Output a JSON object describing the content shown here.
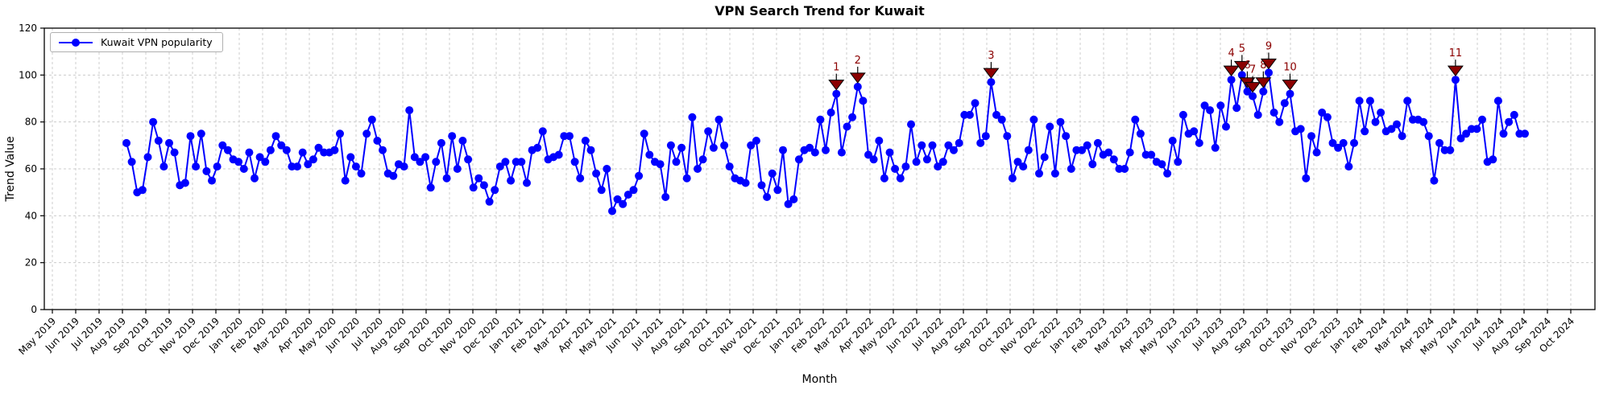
{
  "title": "VPN Search Trend for Kuwait",
  "xlabel": "Month",
  "ylabel": "Trend Value",
  "legend": {
    "label": "Kuwait VPN popularity"
  },
  "chart_data": {
    "type": "line",
    "title": "VPN Search Trend for Kuwait",
    "xlabel": "Month",
    "ylabel": "Trend Value",
    "ylim": [
      0,
      120
    ],
    "yticks": [
      0,
      20,
      40,
      60,
      80,
      100,
      120
    ],
    "grid": true,
    "grid_color": "#cccccc",
    "legend_position": "upper-left",
    "line_color": "#0000ff",
    "annotation_color": "#8b0000",
    "x_tick_labels": [
      "May 2019",
      "Jun 2019",
      "Jul 2019",
      "Aug 2019",
      "Sep 2019",
      "Oct 2019",
      "Nov 2019",
      "Dec 2019",
      "Jan 2020",
      "Feb 2020",
      "Mar 2020",
      "Apr 2020",
      "May 2020",
      "Jun 2020",
      "Jul 2020",
      "Aug 2020",
      "Sep 2020",
      "Oct 2020",
      "Nov 2020",
      "Dec 2020",
      "Jan 2021",
      "Feb 2021",
      "Mar 2021",
      "Apr 2021",
      "May 2021",
      "Jun 2021",
      "Jul 2021",
      "Aug 2021",
      "Sep 2021",
      "Oct 2021",
      "Nov 2021",
      "Dec 2021",
      "Jan 2022",
      "Feb 2022",
      "Mar 2022",
      "Apr 2022",
      "May 2022",
      "Jun 2022",
      "Jul 2022",
      "Aug 2022",
      "Sep 2022",
      "Oct 2022",
      "Nov 2022",
      "Dec 2022",
      "Jan 2023",
      "Feb 2023",
      "Mar 2023",
      "Apr 2023",
      "May 2023",
      "Jun 2023",
      "Jul 2023",
      "Aug 2023",
      "Sep 2023",
      "Oct 2023",
      "Nov 2023",
      "Dec 2023",
      "Jan 2024",
      "Feb 2024",
      "Mar 2024",
      "Apr 2024",
      "May 2024",
      "Jun 2024",
      "Jul 2024",
      "Aug 2024",
      "Sep 2024",
      "Oct 2024"
    ],
    "series": [
      {
        "name": "Kuwait VPN popularity",
        "color": "#0000ff",
        "start_week": "2019-08-04",
        "interval_days": 7,
        "values": [
          71,
          63,
          50,
          51,
          65,
          80,
          72,
          61,
          71,
          67,
          53,
          54,
          74,
          61,
          75,
          59,
          55,
          61,
          70,
          68,
          64,
          63,
          60,
          67,
          56,
          65,
          63,
          68,
          74,
          70,
          68,
          61,
          61,
          67,
          62,
          64,
          69,
          67,
          67,
          68,
          75,
          55,
          65,
          61,
          58,
          75,
          81,
          72,
          68,
          58,
          57,
          62,
          61,
          85,
          65,
          63,
          65,
          52,
          63,
          71,
          56,
          74,
          60,
          72,
          64,
          52,
          56,
          53,
          46,
          51,
          61,
          63,
          55,
          63,
          63,
          54,
          68,
          69,
          76,
          64,
          65,
          66,
          74,
          74,
          63,
          56,
          72,
          68,
          58,
          51,
          60,
          42,
          47,
          45,
          49,
          51,
          57,
          75,
          66,
          63,
          62,
          48,
          70,
          63,
          69,
          56,
          82,
          60,
          64,
          76,
          69,
          81,
          70,
          61,
          56,
          55,
          54,
          70,
          72,
          53,
          48,
          58,
          51,
          68,
          45,
          47,
          64,
          68,
          69,
          67,
          81,
          68,
          84,
          92,
          67,
          78,
          82,
          95,
          89,
          66,
          64,
          72,
          56,
          67,
          60,
          56,
          61,
          79,
          63,
          70,
          64,
          70,
          61,
          63,
          70,
          68,
          71,
          83,
          83,
          88,
          71,
          74,
          97,
          83,
          81,
          74,
          56,
          63,
          61,
          68,
          81,
          58,
          65,
          78,
          58,
          80,
          74,
          60,
          68,
          68,
          70,
          62,
          71,
          66,
          67,
          64,
          60,
          60,
          67,
          81,
          75,
          66,
          66,
          63,
          62,
          58,
          72,
          63,
          83,
          75,
          76,
          71,
          87,
          85,
          69,
          87,
          78,
          98,
          86,
          100,
          93,
          91,
          83,
          93,
          101,
          84,
          80,
          88,
          92,
          76,
          77,
          56,
          74,
          67,
          84,
          82,
          71,
          69,
          71,
          61,
          71,
          89,
          76,
          89,
          80,
          84,
          76,
          77,
          79,
          74,
          89,
          81,
          81,
          80,
          74,
          55,
          71,
          68,
          68,
          98,
          73,
          75,
          77,
          77,
          81,
          63,
          64,
          89,
          75,
          80,
          83,
          75,
          75
        ]
      }
    ],
    "annotations": [
      {
        "label": "1",
        "index": 133,
        "value": 92
      },
      {
        "label": "2",
        "index": 137,
        "value": 95
      },
      {
        "label": "3",
        "index": 162,
        "value": 97
      },
      {
        "label": "4",
        "index": 207,
        "value": 98
      },
      {
        "label": "5",
        "index": 209,
        "value": 100
      },
      {
        "label": "6",
        "index": 210,
        "value": 93
      },
      {
        "label": "7",
        "index": 211,
        "value": 91
      },
      {
        "label": "8",
        "index": 213,
        "value": 93
      },
      {
        "label": "9",
        "index": 214,
        "value": 101
      },
      {
        "label": "10",
        "index": 218,
        "value": 92
      },
      {
        "label": "11",
        "index": 249,
        "value": 98
      }
    ]
  }
}
